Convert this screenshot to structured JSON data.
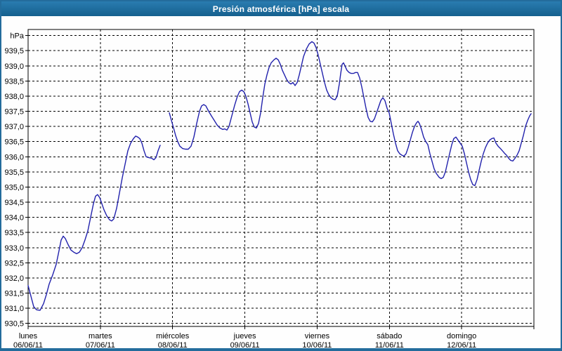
{
  "window": {
    "title": "Presión atmosférica [hPa] escala"
  },
  "colors": {
    "titlebar_top": "#2a7cb0",
    "titlebar_bottom": "#15608e",
    "frame": "#236c9c",
    "background": "#fefefe",
    "plot_border": "#000000",
    "grid": "#000000",
    "text": "#000000",
    "line": "#2121ac"
  },
  "chart_data": {
    "type": "line",
    "title": "Presión atmosférica [hPa] escala",
    "ylabel": "hPa",
    "y_unit_label": "hPa",
    "decimal_separator": ",",
    "ylim": [
      930.4,
      940.2
    ],
    "yticks": {
      "min": 930.5,
      "max": 940.0,
      "step": 0.5
    },
    "xlim_days": [
      0,
      7
    ],
    "grid": "dashed",
    "legend_position": "none",
    "x_axis_days": [
      {
        "name": "lunes",
        "date": "06/06/11"
      },
      {
        "name": "martes",
        "date": "07/06/11"
      },
      {
        "name": "miércoles",
        "date": "08/06/11"
      },
      {
        "name": "jueves",
        "date": "09/06/11"
      },
      {
        "name": "viernes",
        "date": "10/06/11"
      },
      {
        "name": "sábado",
        "date": "11/06/11"
      },
      {
        "name": "domingo",
        "date": "12/06/11"
      }
    ],
    "series": [
      {
        "name": "Presión atmosférica",
        "unit": "hPa",
        "x_unit": "days_from_monday_00h",
        "color": "#2121ac",
        "segments": [
          [
            [
              0.0,
              931.75
            ],
            [
              0.039,
              931.4
            ],
            [
              0.078,
              931.05
            ],
            [
              0.117,
              930.95
            ],
            [
              0.165,
              930.93
            ],
            [
              0.214,
              931.15
            ],
            [
              0.253,
              931.45
            ],
            [
              0.292,
              931.8
            ],
            [
              0.34,
              932.1
            ],
            [
              0.389,
              932.45
            ],
            [
              0.428,
              932.9
            ],
            [
              0.457,
              933.25
            ],
            [
              0.486,
              933.38
            ],
            [
              0.515,
              933.3
            ],
            [
              0.554,
              933.1
            ],
            [
              0.593,
              932.92
            ],
            [
              0.632,
              932.85
            ],
            [
              0.671,
              932.8
            ],
            [
              0.71,
              932.85
            ],
            [
              0.749,
              933.0
            ],
            [
              0.787,
              933.25
            ],
            [
              0.826,
              933.55
            ],
            [
              0.865,
              934.0
            ],
            [
              0.904,
              934.45
            ],
            [
              0.933,
              934.7
            ],
            [
              0.962,
              934.75
            ],
            [
              0.992,
              934.65
            ],
            [
              1.021,
              934.45
            ],
            [
              1.05,
              934.25
            ],
            [
              1.089,
              934.05
            ],
            [
              1.128,
              933.92
            ],
            [
              1.157,
              933.88
            ],
            [
              1.186,
              933.95
            ],
            [
              1.225,
              934.3
            ],
            [
              1.264,
              934.8
            ],
            [
              1.303,
              935.3
            ],
            [
              1.342,
              935.75
            ],
            [
              1.381,
              936.2
            ],
            [
              1.419,
              936.45
            ],
            [
              1.458,
              936.6
            ],
            [
              1.488,
              936.68
            ],
            [
              1.517,
              936.65
            ],
            [
              1.546,
              936.6
            ],
            [
              1.575,
              936.45
            ],
            [
              1.604,
              936.2
            ],
            [
              1.633,
              936.0
            ],
            [
              1.672,
              935.97
            ],
            [
              1.711,
              935.95
            ],
            [
              1.74,
              935.9
            ],
            [
              1.769,
              935.97
            ],
            [
              1.799,
              936.2
            ],
            [
              1.828,
              936.38
            ]
          ],
          [
            [
              1.954,
              937.45
            ],
            [
              1.983,
              937.2
            ],
            [
              2.013,
              936.95
            ],
            [
              2.042,
              936.7
            ],
            [
              2.071,
              936.5
            ],
            [
              2.1,
              936.35
            ],
            [
              2.139,
              936.27
            ],
            [
              2.178,
              936.25
            ],
            [
              2.217,
              936.25
            ],
            [
              2.256,
              936.35
            ],
            [
              2.294,
              936.65
            ],
            [
              2.333,
              937.1
            ],
            [
              2.372,
              937.5
            ],
            [
              2.401,
              937.68
            ],
            [
              2.431,
              937.72
            ],
            [
              2.46,
              937.68
            ],
            [
              2.499,
              937.5
            ],
            [
              2.537,
              937.35
            ],
            [
              2.576,
              937.2
            ],
            [
              2.615,
              937.05
            ],
            [
              2.654,
              936.95
            ],
            [
              2.693,
              936.9
            ],
            [
              2.722,
              936.92
            ],
            [
              2.751,
              936.88
            ],
            [
              2.781,
              937.0
            ],
            [
              2.819,
              937.35
            ],
            [
              2.858,
              937.7
            ],
            [
              2.897,
              938.0
            ],
            [
              2.926,
              938.15
            ],
            [
              2.956,
              938.2
            ],
            [
              2.985,
              938.15
            ],
            [
              3.014,
              938.0
            ],
            [
              3.043,
              937.75
            ],
            [
              3.072,
              937.45
            ],
            [
              3.101,
              937.15
            ],
            [
              3.131,
              936.98
            ],
            [
              3.16,
              936.95
            ],
            [
              3.189,
              937.1
            ],
            [
              3.218,
              937.45
            ],
            [
              3.247,
              937.95
            ],
            [
              3.276,
              938.4
            ],
            [
              3.306,
              938.7
            ],
            [
              3.335,
              938.95
            ],
            [
              3.364,
              939.1
            ],
            [
              3.403,
              939.2
            ],
            [
              3.432,
              939.25
            ],
            [
              3.461,
              939.2
            ],
            [
              3.49,
              939.05
            ],
            [
              3.519,
              938.85
            ],
            [
              3.549,
              938.7
            ],
            [
              3.578,
              938.55
            ],
            [
              3.607,
              938.45
            ],
            [
              3.636,
              938.4
            ],
            [
              3.665,
              938.45
            ],
            [
              3.694,
              938.35
            ],
            [
              3.724,
              938.45
            ],
            [
              3.753,
              938.7
            ],
            [
              3.782,
              939.0
            ],
            [
              3.811,
              939.3
            ],
            [
              3.85,
              939.55
            ],
            [
              3.889,
              939.72
            ],
            [
              3.928,
              939.8
            ],
            [
              3.957,
              939.75
            ],
            [
              3.986,
              939.6
            ],
            [
              4.015,
              939.35
            ],
            [
              4.044,
              939.05
            ],
            [
              4.074,
              938.75
            ],
            [
              4.103,
              938.45
            ],
            [
              4.132,
              938.2
            ],
            [
              4.161,
              938.05
            ],
            [
              4.19,
              937.95
            ],
            [
              4.219,
              937.9
            ],
            [
              4.249,
              937.88
            ],
            [
              4.278,
              938.0
            ],
            [
              4.307,
              938.4
            ],
            [
              4.326,
              938.75
            ],
            [
              4.346,
              939.05
            ],
            [
              4.365,
              939.1
            ],
            [
              4.385,
              939.0
            ],
            [
              4.414,
              938.85
            ],
            [
              4.443,
              938.78
            ],
            [
              4.472,
              938.75
            ],
            [
              4.501,
              938.75
            ],
            [
              4.531,
              938.78
            ],
            [
              4.56,
              938.78
            ],
            [
              4.589,
              938.6
            ],
            [
              4.618,
              938.3
            ],
            [
              4.647,
              937.95
            ],
            [
              4.676,
              937.6
            ],
            [
              4.706,
              937.3
            ],
            [
              4.735,
              937.17
            ],
            [
              4.764,
              937.15
            ],
            [
              4.793,
              937.25
            ],
            [
              4.822,
              937.45
            ],
            [
              4.851,
              937.65
            ],
            [
              4.881,
              937.85
            ],
            [
              4.91,
              937.95
            ],
            [
              4.939,
              937.85
            ],
            [
              4.968,
              937.6
            ],
            [
              4.997,
              937.45
            ],
            [
              5.026,
              937.1
            ],
            [
              5.056,
              936.75
            ],
            [
              5.085,
              936.45
            ],
            [
              5.114,
              936.2
            ],
            [
              5.143,
              936.1
            ],
            [
              5.172,
              936.05
            ],
            [
              5.201,
              936.02
            ],
            [
              5.231,
              936.1
            ],
            [
              5.26,
              936.3
            ],
            [
              5.289,
              936.55
            ],
            [
              5.318,
              936.8
            ],
            [
              5.347,
              937.0
            ],
            [
              5.376,
              937.12
            ],
            [
              5.396,
              937.17
            ],
            [
              5.415,
              937.1
            ],
            [
              5.444,
              936.9
            ],
            [
              5.474,
              936.65
            ],
            [
              5.503,
              936.5
            ],
            [
              5.532,
              936.4
            ],
            [
              5.561,
              936.1
            ],
            [
              5.59,
              935.85
            ],
            [
              5.619,
              935.6
            ],
            [
              5.649,
              935.45
            ],
            [
              5.688,
              935.32
            ],
            [
              5.717,
              935.28
            ],
            [
              5.746,
              935.32
            ],
            [
              5.775,
              935.5
            ],
            [
              5.804,
              935.8
            ],
            [
              5.833,
              936.1
            ],
            [
              5.863,
              936.4
            ],
            [
              5.892,
              936.6
            ],
            [
              5.921,
              936.65
            ],
            [
              5.95,
              936.55
            ],
            [
              5.979,
              936.45
            ],
            [
              6.008,
              936.35
            ],
            [
              6.038,
              936.1
            ],
            [
              6.067,
              935.8
            ],
            [
              6.096,
              935.5
            ],
            [
              6.125,
              935.25
            ],
            [
              6.154,
              935.08
            ],
            [
              6.183,
              935.05
            ],
            [
              6.213,
              935.25
            ],
            [
              6.242,
              935.55
            ],
            [
              6.271,
              935.85
            ],
            [
              6.3,
              936.1
            ],
            [
              6.329,
              936.3
            ],
            [
              6.358,
              936.45
            ],
            [
              6.388,
              936.55
            ],
            [
              6.417,
              936.6
            ],
            [
              6.446,
              936.62
            ],
            [
              6.475,
              936.45
            ],
            [
              6.504,
              936.35
            ],
            [
              6.533,
              936.28
            ],
            [
              6.563,
              936.2
            ],
            [
              6.592,
              936.12
            ],
            [
              6.621,
              936.05
            ],
            [
              6.65,
              935.95
            ],
            [
              6.679,
              935.88
            ],
            [
              6.708,
              935.86
            ],
            [
              6.738,
              935.95
            ],
            [
              6.767,
              936.05
            ],
            [
              6.796,
              936.2
            ],
            [
              6.825,
              936.45
            ],
            [
              6.854,
              936.7
            ],
            [
              6.883,
              937.0
            ],
            [
              6.913,
              937.2
            ],
            [
              6.942,
              937.35
            ],
            [
              6.961,
              937.42
            ]
          ]
        ]
      }
    ]
  }
}
